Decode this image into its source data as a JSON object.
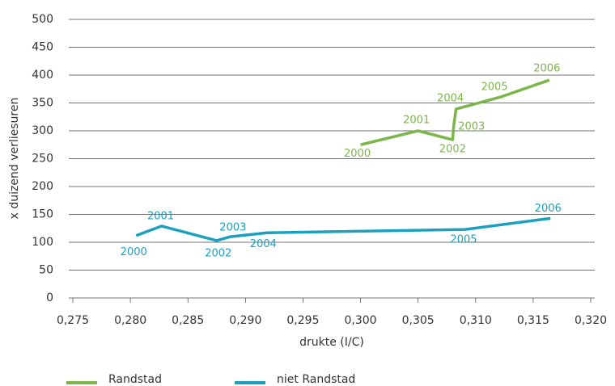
{
  "chart_data": {
    "type": "line",
    "xlabel": "drukte (I/C)",
    "ylabel": "x duizend verliesuren",
    "xlim": [
      0.275,
      0.32
    ],
    "xticks": [
      {
        "value": 0.275,
        "label": "0,275"
      },
      {
        "value": 0.28,
        "label": "0,280"
      },
      {
        "value": 0.285,
        "label": "0,285"
      },
      {
        "value": 0.29,
        "label": "0,290"
      },
      {
        "value": 0.295,
        "label": "0,295"
      },
      {
        "value": 0.3,
        "label": "0,300"
      },
      {
        "value": 0.305,
        "label": "0,305"
      },
      {
        "value": 0.31,
        "label": "0,310"
      },
      {
        "value": 0.315,
        "label": "0,315"
      },
      {
        "value": 0.32,
        "label": "0,320"
      }
    ],
    "ylim": [
      0,
      500
    ],
    "yticks": [
      0,
      50,
      100,
      150,
      200,
      250,
      300,
      350,
      400,
      450,
      500
    ],
    "grid": true,
    "legend": "bottom",
    "series": [
      {
        "name": "Randstad",
        "color": "#7ab648",
        "x": [
          0.3,
          0.305,
          0.308,
          0.3081,
          0.3083,
          0.3122,
          0.3164
        ],
        "values": [
          275,
          300,
          284,
          310,
          339,
          361,
          391
        ],
        "point_labels": [
          "2000",
          "2001",
          "2002",
          "2003",
          "2004",
          "2005",
          "2006"
        ]
      },
      {
        "name": "niet Randstad",
        "color": "#1ba1bf",
        "x": [
          0.2805,
          0.2827,
          0.2875,
          0.2887,
          0.2919,
          0.3091,
          0.3165
        ],
        "values": [
          112,
          129,
          103,
          110,
          117,
          123,
          143
        ],
        "point_labels": [
          "2000",
          "2001",
          "2002",
          "2003",
          "2004",
          "2005",
          "2006"
        ]
      }
    ]
  }
}
